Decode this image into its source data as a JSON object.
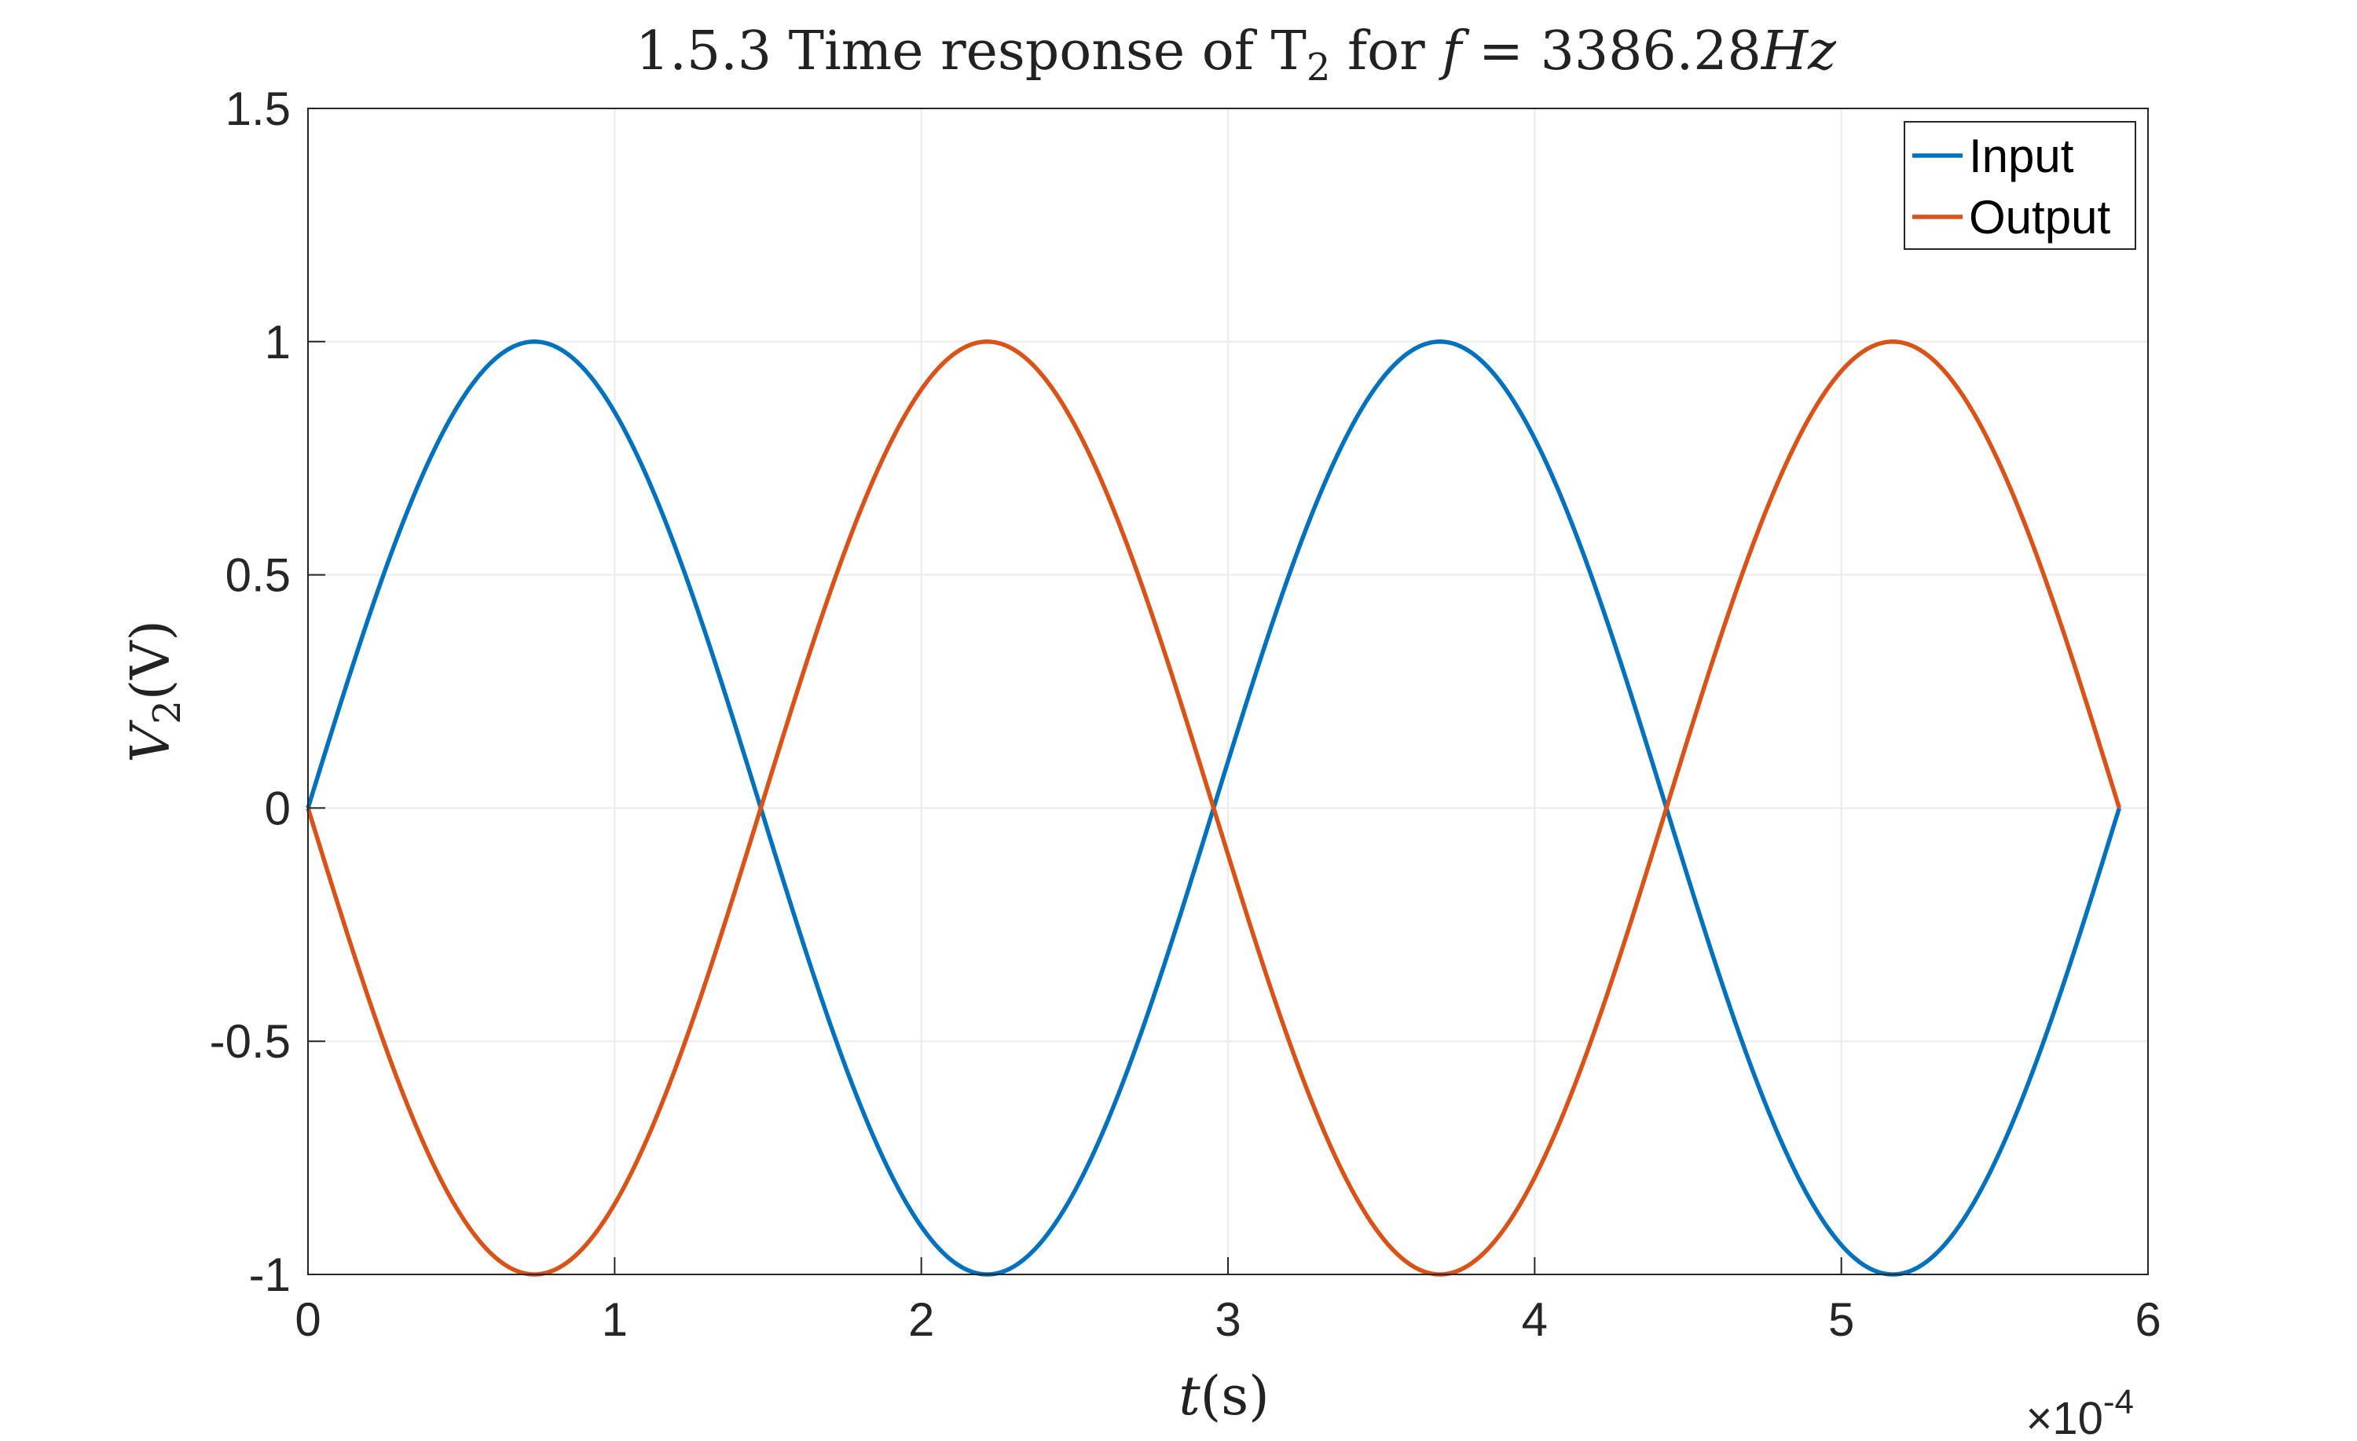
{
  "chart_data": {
    "type": "line",
    "title": {
      "prefix": "1.5.3 Time response of T",
      "subscript": "2",
      "middle": " for ",
      "var": "f",
      "equals": " = ",
      "value": "3386.28",
      "unit": "Hz"
    },
    "xlabel": {
      "var": "t",
      "unit": "(s)"
    },
    "ylabel": {
      "var": "V",
      "subscript": "2",
      "unit": "(V)"
    },
    "x_exponent": {
      "times": "×10",
      "power": "-4"
    },
    "xlim": [
      0,
      6
    ],
    "ylim": [
      -1,
      1.5
    ],
    "xticks": [
      0,
      1,
      2,
      3,
      4,
      5,
      6
    ],
    "xtick_labels": [
      "0",
      "1",
      "2",
      "3",
      "4",
      "5",
      "6"
    ],
    "yticks": [
      -1,
      -0.5,
      0,
      0.5,
      1,
      1.5
    ],
    "ytick_labels": [
      "-1",
      "-0.5",
      "0",
      "0.5",
      "1",
      "1.5"
    ],
    "grid": true,
    "legend_position": "top-right",
    "frequency_hz": 3386.28,
    "x_end": 5.9062,
    "series": [
      {
        "name": "Input",
        "color": "#0072BD",
        "function": "sin",
        "amplitude": 1
      },
      {
        "name": "Output",
        "color": "#D95319",
        "function": "-sin",
        "amplitude": 1
      }
    ]
  }
}
